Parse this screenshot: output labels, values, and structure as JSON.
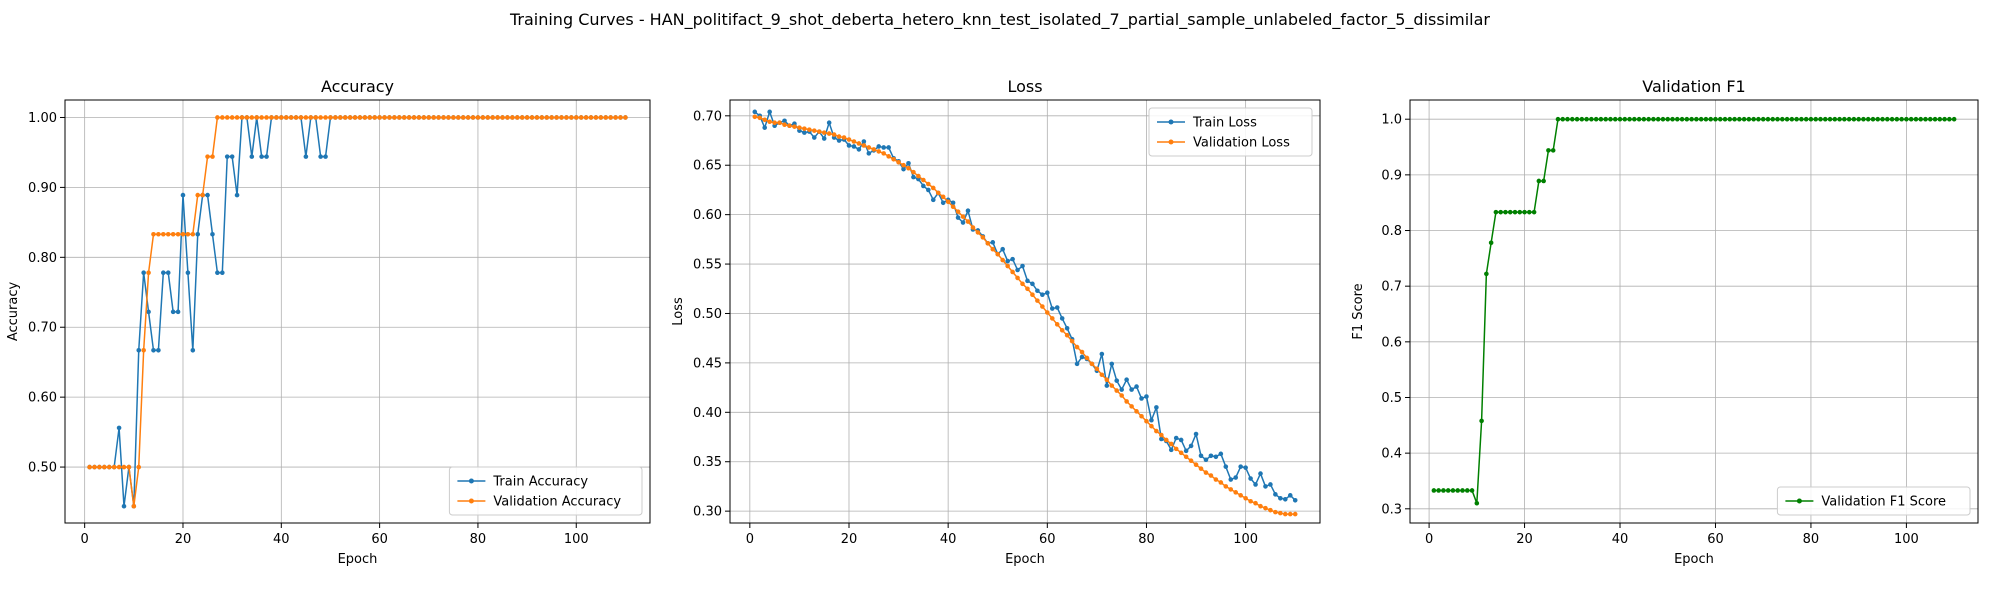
{
  "figure_title": "Training Curves - HAN_politifact_9_shot_deberta_hetero_knn_test_isolated_7_partial_sample_unlabeled_factor_5_dissimilar",
  "colors": {
    "blue": "#1f77b4",
    "orange": "#ff7f0e",
    "green": "#008000",
    "grid": "#b0b0b0"
  },
  "chart_data": [
    {
      "type": "line",
      "title": "Accuracy",
      "xlabel": "Epoch",
      "ylabel": "Accuracy",
      "xlim": [
        -4,
        115
      ],
      "ylim": [
        0.42,
        1.025
      ],
      "xticks": [
        0,
        20,
        40,
        60,
        80,
        100
      ],
      "yticks": [
        0.5,
        0.6,
        0.7,
        0.8,
        0.9,
        1.0
      ],
      "grid": true,
      "legend_position": "lower right",
      "series": [
        {
          "name": "Train Accuracy",
          "color": "#1f77b4",
          "values": [
            0.5,
            0.5,
            0.5,
            0.5,
            0.5,
            0.5,
            0.556,
            0.444,
            0.5,
            0.444,
            0.667,
            0.778,
            0.722,
            0.667,
            0.667,
            0.778,
            0.778,
            0.722,
            0.722,
            0.889,
            0.778,
            0.667,
            0.833,
            0.889,
            0.889,
            0.833,
            0.778,
            0.778,
            0.944,
            0.944,
            0.889,
            1.0,
            1.0,
            0.944,
            1.0,
            0.944,
            0.944,
            1.0,
            1.0,
            1.0,
            1.0,
            1.0,
            1.0,
            1.0,
            0.944,
            1.0,
            1.0,
            0.944,
            0.944,
            1.0,
            1.0,
            1.0,
            1.0,
            1.0,
            1.0,
            1.0,
            1.0,
            1.0,
            1.0,
            1.0,
            1.0,
            1.0,
            1.0,
            1.0,
            1.0,
            1.0,
            1.0,
            1.0,
            1.0,
            1.0,
            1.0,
            1.0,
            1.0,
            1.0,
            1.0,
            1.0,
            1.0,
            1.0,
            1.0,
            1.0,
            1.0,
            1.0,
            1.0,
            1.0,
            1.0,
            1.0,
            1.0,
            1.0,
            1.0,
            1.0,
            1.0,
            1.0,
            1.0,
            1.0,
            1.0,
            1.0,
            1.0,
            1.0,
            1.0,
            1.0,
            1.0,
            1.0,
            1.0,
            1.0,
            1.0,
            1.0,
            1.0,
            1.0,
            1.0,
            1.0
          ]
        },
        {
          "name": "Validation Accuracy",
          "color": "#ff7f0e",
          "values": [
            0.5,
            0.5,
            0.5,
            0.5,
            0.5,
            0.5,
            0.5,
            0.5,
            0.5,
            0.444,
            0.5,
            0.667,
            0.778,
            0.833,
            0.833,
            0.833,
            0.833,
            0.833,
            0.833,
            0.833,
            0.833,
            0.833,
            0.889,
            0.889,
            0.944,
            0.944,
            1.0,
            1.0,
            1.0,
            1.0,
            1.0,
            1.0,
            1.0,
            1.0,
            1.0,
            1.0,
            1.0,
            1.0,
            1.0,
            1.0,
            1.0,
            1.0,
            1.0,
            1.0,
            1.0,
            1.0,
            1.0,
            1.0,
            1.0,
            1.0,
            1.0,
            1.0,
            1.0,
            1.0,
            1.0,
            1.0,
            1.0,
            1.0,
            1.0,
            1.0,
            1.0,
            1.0,
            1.0,
            1.0,
            1.0,
            1.0,
            1.0,
            1.0,
            1.0,
            1.0,
            1.0,
            1.0,
            1.0,
            1.0,
            1.0,
            1.0,
            1.0,
            1.0,
            1.0,
            1.0,
            1.0,
            1.0,
            1.0,
            1.0,
            1.0,
            1.0,
            1.0,
            1.0,
            1.0,
            1.0,
            1.0,
            1.0,
            1.0,
            1.0,
            1.0,
            1.0,
            1.0,
            1.0,
            1.0,
            1.0,
            1.0,
            1.0,
            1.0,
            1.0,
            1.0,
            1.0,
            1.0,
            1.0,
            1.0,
            1.0
          ]
        }
      ]
    },
    {
      "type": "line",
      "title": "Loss",
      "xlabel": "Epoch",
      "ylabel": "Loss",
      "xlim": [
        -4,
        115
      ],
      "ylim": [
        0.288,
        0.716
      ],
      "xticks": [
        0,
        20,
        40,
        60,
        80,
        100
      ],
      "yticks": [
        0.3,
        0.35,
        0.4,
        0.45,
        0.5,
        0.55,
        0.6,
        0.65,
        0.7
      ],
      "grid": true,
      "legend_position": "upper right",
      "series": [
        {
          "name": "Train Loss",
          "color": "#1f77b4",
          "values": [
            0.704,
            0.7,
            0.688,
            0.704,
            0.69,
            0.693,
            0.695,
            0.69,
            0.692,
            0.685,
            0.683,
            0.684,
            0.678,
            0.684,
            0.677,
            0.693,
            0.678,
            0.675,
            0.676,
            0.67,
            0.669,
            0.666,
            0.674,
            0.662,
            0.665,
            0.669,
            0.668,
            0.668,
            0.657,
            0.654,
            0.646,
            0.652,
            0.638,
            0.636,
            0.629,
            0.625,
            0.615,
            0.622,
            0.612,
            0.615,
            0.612,
            0.597,
            0.592,
            0.604,
            0.585,
            0.584,
            0.578,
            0.571,
            0.572,
            0.56,
            0.565,
            0.553,
            0.555,
            0.544,
            0.548,
            0.533,
            0.53,
            0.523,
            0.519,
            0.521,
            0.505,
            0.506,
            0.495,
            0.485,
            0.474,
            0.449,
            0.456,
            0.454,
            0.449,
            0.442,
            0.459,
            0.427,
            0.449,
            0.432,
            0.423,
            0.433,
            0.423,
            0.426,
            0.414,
            0.416,
            0.392,
            0.405,
            0.373,
            0.371,
            0.362,
            0.374,
            0.372,
            0.361,
            0.366,
            0.378,
            0.356,
            0.352,
            0.356,
            0.355,
            0.358,
            0.345,
            0.332,
            0.334,
            0.345,
            0.344,
            0.333,
            0.327,
            0.338,
            0.325,
            0.327,
            0.317,
            0.313,
            0.312,
            0.316,
            0.311
          ]
        },
        {
          "name": "Validation Loss",
          "color": "#ff7f0e",
          "values": [
            0.699,
            0.698,
            0.696,
            0.694,
            0.693,
            0.693,
            0.691,
            0.69,
            0.689,
            0.688,
            0.687,
            0.686,
            0.685,
            0.684,
            0.683,
            0.682,
            0.681,
            0.679,
            0.678,
            0.676,
            0.674,
            0.672,
            0.67,
            0.668,
            0.666,
            0.664,
            0.662,
            0.659,
            0.656,
            0.653,
            0.65,
            0.647,
            0.643,
            0.639,
            0.635,
            0.631,
            0.627,
            0.622,
            0.618,
            0.613,
            0.608,
            0.603,
            0.598,
            0.593,
            0.587,
            0.582,
            0.577,
            0.571,
            0.565,
            0.56,
            0.554,
            0.548,
            0.542,
            0.536,
            0.53,
            0.525,
            0.519,
            0.513,
            0.507,
            0.501,
            0.495,
            0.489,
            0.483,
            0.478,
            0.472,
            0.466,
            0.461,
            0.455,
            0.449,
            0.444,
            0.438,
            0.433,
            0.427,
            0.422,
            0.417,
            0.411,
            0.406,
            0.401,
            0.396,
            0.391,
            0.386,
            0.381,
            0.377,
            0.372,
            0.368,
            0.363,
            0.359,
            0.355,
            0.351,
            0.347,
            0.343,
            0.339,
            0.336,
            0.332,
            0.329,
            0.325,
            0.322,
            0.319,
            0.316,
            0.313,
            0.31,
            0.308,
            0.305,
            0.303,
            0.301,
            0.299,
            0.298,
            0.297,
            0.297,
            0.297
          ]
        }
      ]
    },
    {
      "type": "line",
      "title": "Validation F1",
      "xlabel": "Epoch",
      "ylabel": "F1 Score",
      "xlim": [
        -4,
        115
      ],
      "ylim": [
        0.2745,
        1.0345
      ],
      "xticks": [
        0,
        20,
        40,
        60,
        80,
        100
      ],
      "yticks": [
        0.3,
        0.4,
        0.5,
        0.6,
        0.7,
        0.8,
        0.9,
        1.0
      ],
      "grid": true,
      "legend_position": "lower right",
      "series": [
        {
          "name": "Validation F1 Score",
          "color": "#008000",
          "values": [
            0.333,
            0.333,
            0.333,
            0.333,
            0.333,
            0.333,
            0.333,
            0.333,
            0.333,
            0.31,
            0.458,
            0.722,
            0.778,
            0.833,
            0.833,
            0.833,
            0.833,
            0.833,
            0.833,
            0.833,
            0.833,
            0.833,
            0.889,
            0.889,
            0.944,
            0.944,
            1.0,
            1.0,
            1.0,
            1.0,
            1.0,
            1.0,
            1.0,
            1.0,
            1.0,
            1.0,
            1.0,
            1.0,
            1.0,
            1.0,
            1.0,
            1.0,
            1.0,
            1.0,
            1.0,
            1.0,
            1.0,
            1.0,
            1.0,
            1.0,
            1.0,
            1.0,
            1.0,
            1.0,
            1.0,
            1.0,
            1.0,
            1.0,
            1.0,
            1.0,
            1.0,
            1.0,
            1.0,
            1.0,
            1.0,
            1.0,
            1.0,
            1.0,
            1.0,
            1.0,
            1.0,
            1.0,
            1.0,
            1.0,
            1.0,
            1.0,
            1.0,
            1.0,
            1.0,
            1.0,
            1.0,
            1.0,
            1.0,
            1.0,
            1.0,
            1.0,
            1.0,
            1.0,
            1.0,
            1.0,
            1.0,
            1.0,
            1.0,
            1.0,
            1.0,
            1.0,
            1.0,
            1.0,
            1.0,
            1.0,
            1.0,
            1.0,
            1.0,
            1.0,
            1.0,
            1.0,
            1.0,
            1.0,
            1.0,
            1.0
          ]
        }
      ]
    }
  ]
}
